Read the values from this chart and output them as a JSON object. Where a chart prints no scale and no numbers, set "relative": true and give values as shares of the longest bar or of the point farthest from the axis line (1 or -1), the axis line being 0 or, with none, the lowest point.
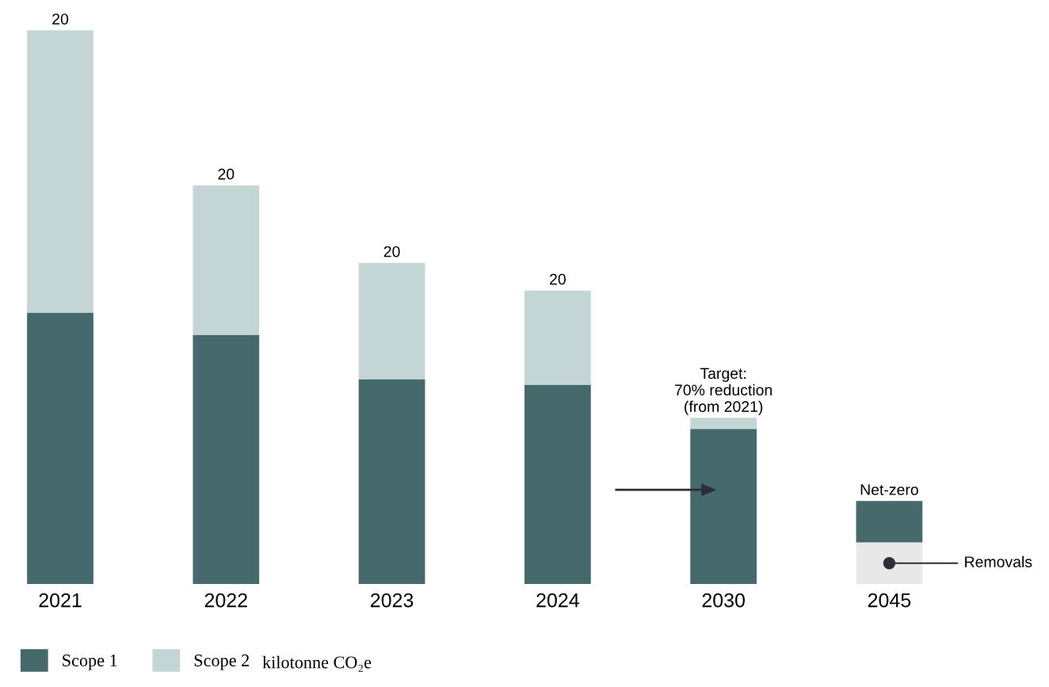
{
  "chart_data": {
    "type": "bar",
    "stacked": true,
    "relative": true,
    "categories": [
      "2021",
      "2022",
      "2023",
      "2024",
      "2030",
      "2045"
    ],
    "series": [
      {
        "name": "Removals",
        "color": "#e8e8e8",
        "values": [
          null,
          null,
          null,
          null,
          null,
          0.075
        ]
      },
      {
        "name": "Scope 1",
        "color": "#46696b",
        "values": [
          0.49,
          0.45,
          0.37,
          0.36,
          0.28,
          0.075
        ]
      },
      {
        "name": "Scope 2",
        "color": "#c3d6d5",
        "values": [
          0.51,
          0.27,
          0.21,
          0.17,
          0.02,
          null
        ]
      }
    ],
    "legend": "bottom left",
    "annotations": [
      {
        "text": "20",
        "x": "2021",
        "y": 1.0
      },
      {
        "text": "20",
        "x": "2022",
        "y": 0.72
      },
      {
        "text": "20",
        "x": "2023",
        "y": 0.58
      },
      {
        "text": "20",
        "x": "2024",
        "y": 0.53
      },
      {
        "text": "Target:\n70% reduction\n(from 2021)",
        "x": "2030",
        "y": 0.3
      },
      {
        "text": "Net-zero",
        "x": "2045",
        "y": 0.15
      },
      "kilotonne CO₂e"
    ]
  }
}
